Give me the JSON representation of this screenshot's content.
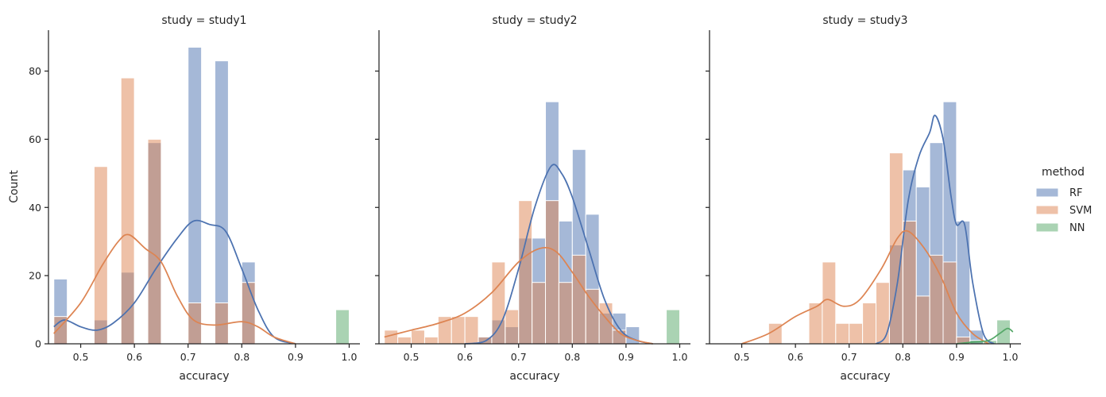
{
  "chart_data": {
    "type": "histogram",
    "ylabel": "Count",
    "xlabel": "accuracy",
    "xlim": [
      0.44,
      1.02
    ],
    "ylim": [
      0,
      92
    ],
    "x_ticks": [
      0.5,
      0.6,
      0.7,
      0.8,
      0.9,
      1.0
    ],
    "x_tick_labels": [
      "0.5",
      "0.6",
      "0.7",
      "0.8",
      "0.9",
      "1.0"
    ],
    "y_ticks": [
      0,
      20,
      40,
      60,
      80
    ],
    "y_tick_labels": [
      "0",
      "20",
      "40",
      "60",
      "80"
    ],
    "grid": false,
    "legend": {
      "title": "method",
      "placement": "right",
      "entries": [
        {
          "label": "RF",
          "color": "#4c72b0"
        },
        {
          "label": "SVM",
          "color": "#dd8452"
        },
        {
          "label": "NN",
          "color": "#55a868"
        }
      ]
    },
    "panels": [
      {
        "title": "study = study1",
        "series": [
          {
            "name": "RF",
            "color": "#4c72b0",
            "bins": [
              {
                "x0": 0.45,
                "x1": 0.475,
                "y": 19
              },
              {
                "x0": 0.525,
                "x1": 0.55,
                "y": 7
              },
              {
                "x0": 0.575,
                "x1": 0.6,
                "y": 21
              },
              {
                "x0": 0.625,
                "x1": 0.65,
                "y": 59
              },
              {
                "x0": 0.7,
                "x1": 0.725,
                "y": 87
              },
              {
                "x0": 0.75,
                "x1": 0.775,
                "y": 83
              },
              {
                "x0": 0.8,
                "x1": 0.825,
                "y": 24
              }
            ],
            "kde": [
              [
                0.45,
                5
              ],
              [
                0.47,
                7
              ],
              [
                0.5,
                5
              ],
              [
                0.53,
                4
              ],
              [
                0.56,
                6
              ],
              [
                0.6,
                12
              ],
              [
                0.64,
                22
              ],
              [
                0.68,
                31
              ],
              [
                0.71,
                36
              ],
              [
                0.74,
                35
              ],
              [
                0.77,
                33
              ],
              [
                0.8,
                22
              ],
              [
                0.83,
                10
              ],
              [
                0.86,
                2
              ],
              [
                0.9,
                0
              ]
            ]
          },
          {
            "name": "SVM",
            "color": "#dd8452",
            "bins": [
              {
                "x0": 0.45,
                "x1": 0.475,
                "y": 8
              },
              {
                "x0": 0.525,
                "x1": 0.55,
                "y": 52
              },
              {
                "x0": 0.575,
                "x1": 0.6,
                "y": 78
              },
              {
                "x0": 0.625,
                "x1": 0.65,
                "y": 60
              },
              {
                "x0": 0.7,
                "x1": 0.725,
                "y": 12
              },
              {
                "x0": 0.75,
                "x1": 0.775,
                "y": 12
              },
              {
                "x0": 0.8,
                "x1": 0.825,
                "y": 18
              }
            ],
            "kde": [
              [
                0.45,
                3
              ],
              [
                0.5,
                12
              ],
              [
                0.54,
                23
              ],
              [
                0.57,
                30
              ],
              [
                0.59,
                32
              ],
              [
                0.62,
                28
              ],
              [
                0.65,
                24
              ],
              [
                0.68,
                14
              ],
              [
                0.71,
                7
              ],
              [
                0.75,
                5.5
              ],
              [
                0.8,
                6.5
              ],
              [
                0.83,
                5
              ],
              [
                0.86,
                2
              ],
              [
                0.9,
                0
              ]
            ]
          },
          {
            "name": "NN",
            "color": "#55a868",
            "bins": [
              {
                "x0": 0.975,
                "x1": 1.0,
                "y": 10
              }
            ],
            "kde": []
          }
        ]
      },
      {
        "title": "study = study2",
        "series": [
          {
            "name": "RF",
            "color": "#4c72b0",
            "bins": [
              {
                "x0": 0.625,
                "x1": 0.65,
                "y": 2
              },
              {
                "x0": 0.65,
                "x1": 0.675,
                "y": 7
              },
              {
                "x0": 0.675,
                "x1": 0.7,
                "y": 5
              },
              {
                "x0": 0.7,
                "x1": 0.725,
                "y": 31
              },
              {
                "x0": 0.725,
                "x1": 0.75,
                "y": 31
              },
              {
                "x0": 0.75,
                "x1": 0.775,
                "y": 71
              },
              {
                "x0": 0.775,
                "x1": 0.8,
                "y": 36
              },
              {
                "x0": 0.8,
                "x1": 0.825,
                "y": 57
              },
              {
                "x0": 0.825,
                "x1": 0.85,
                "y": 38
              },
              {
                "x0": 0.85,
                "x1": 0.875,
                "y": 9
              },
              {
                "x0": 0.875,
                "x1": 0.9,
                "y": 9
              },
              {
                "x0": 0.9,
                "x1": 0.925,
                "y": 5
              }
            ],
            "kde": [
              [
                0.6,
                0
              ],
              [
                0.64,
                1
              ],
              [
                0.67,
                7
              ],
              [
                0.7,
                22
              ],
              [
                0.73,
                40
              ],
              [
                0.76,
                52
              ],
              [
                0.78,
                50
              ],
              [
                0.8,
                43
              ],
              [
                0.83,
                28
              ],
              [
                0.86,
                13
              ],
              [
                0.89,
                4
              ],
              [
                0.92,
                1
              ],
              [
                0.95,
                0
              ]
            ]
          },
          {
            "name": "SVM",
            "color": "#dd8452",
            "bins": [
              {
                "x0": 0.45,
                "x1": 0.475,
                "y": 4
              },
              {
                "x0": 0.475,
                "x1": 0.5,
                "y": 2
              },
              {
                "x0": 0.5,
                "x1": 0.525,
                "y": 4
              },
              {
                "x0": 0.525,
                "x1": 0.55,
                "y": 2
              },
              {
                "x0": 0.55,
                "x1": 0.575,
                "y": 8
              },
              {
                "x0": 0.575,
                "x1": 0.6,
                "y": 8
              },
              {
                "x0": 0.6,
                "x1": 0.625,
                "y": 8
              },
              {
                "x0": 0.625,
                "x1": 0.65,
                "y": 2
              },
              {
                "x0": 0.65,
                "x1": 0.675,
                "y": 24
              },
              {
                "x0": 0.675,
                "x1": 0.7,
                "y": 10
              },
              {
                "x0": 0.7,
                "x1": 0.725,
                "y": 42
              },
              {
                "x0": 0.725,
                "x1": 0.75,
                "y": 18
              },
              {
                "x0": 0.75,
                "x1": 0.775,
                "y": 42
              },
              {
                "x0": 0.775,
                "x1": 0.8,
                "y": 18
              },
              {
                "x0": 0.8,
                "x1": 0.825,
                "y": 26
              },
              {
                "x0": 0.825,
                "x1": 0.85,
                "y": 16
              },
              {
                "x0": 0.85,
                "x1": 0.875,
                "y": 12
              },
              {
                "x0": 0.875,
                "x1": 0.9,
                "y": 4
              }
            ],
            "kde": [
              [
                0.45,
                2
              ],
              [
                0.5,
                4
              ],
              [
                0.55,
                6
              ],
              [
                0.6,
                9
              ],
              [
                0.65,
                15
              ],
              [
                0.7,
                24
              ],
              [
                0.74,
                28
              ],
              [
                0.77,
                27
              ],
              [
                0.8,
                21
              ],
              [
                0.83,
                14
              ],
              [
                0.86,
                8
              ],
              [
                0.89,
                3
              ],
              [
                0.92,
                1
              ],
              [
                0.95,
                0
              ]
            ]
          },
          {
            "name": "NN",
            "color": "#55a868",
            "bins": [
              {
                "x0": 0.975,
                "x1": 1.0,
                "y": 10
              }
            ],
            "kde": []
          }
        ]
      },
      {
        "title": "study = study3",
        "series": [
          {
            "name": "RF",
            "color": "#4c72b0",
            "bins": [
              {
                "x0": 0.775,
                "x1": 0.8,
                "y": 29
              },
              {
                "x0": 0.8,
                "x1": 0.825,
                "y": 51
              },
              {
                "x0": 0.825,
                "x1": 0.85,
                "y": 46
              },
              {
                "x0": 0.85,
                "x1": 0.875,
                "y": 59
              },
              {
                "x0": 0.875,
                "x1": 0.9,
                "y": 71
              },
              {
                "x0": 0.9,
                "x1": 0.925,
                "y": 36
              },
              {
                "x0": 0.925,
                "x1": 0.95,
                "y": 4
              }
            ],
            "kde": [
              [
                0.75,
                0
              ],
              [
                0.77,
                3
              ],
              [
                0.79,
                18
              ],
              [
                0.81,
                42
              ],
              [
                0.83,
                55
              ],
              [
                0.85,
                62
              ],
              [
                0.86,
                67
              ],
              [
                0.875,
                60
              ],
              [
                0.89,
                43
              ],
              [
                0.9,
                35
              ],
              [
                0.915,
                35
              ],
              [
                0.93,
                18
              ],
              [
                0.95,
                3
              ],
              [
                0.97,
                0
              ]
            ]
          },
          {
            "name": "SVM",
            "color": "#dd8452",
            "bins": [
              {
                "x0": 0.55,
                "x1": 0.575,
                "y": 6
              },
              {
                "x0": 0.625,
                "x1": 0.65,
                "y": 12
              },
              {
                "x0": 0.65,
                "x1": 0.675,
                "y": 24
              },
              {
                "x0": 0.675,
                "x1": 0.7,
                "y": 6
              },
              {
                "x0": 0.7,
                "x1": 0.725,
                "y": 6
              },
              {
                "x0": 0.725,
                "x1": 0.75,
                "y": 12
              },
              {
                "x0": 0.75,
                "x1": 0.775,
                "y": 18
              },
              {
                "x0": 0.775,
                "x1": 0.8,
                "y": 56
              },
              {
                "x0": 0.8,
                "x1": 0.825,
                "y": 36
              },
              {
                "x0": 0.825,
                "x1": 0.85,
                "y": 14
              },
              {
                "x0": 0.85,
                "x1": 0.875,
                "y": 26
              },
              {
                "x0": 0.875,
                "x1": 0.9,
                "y": 24
              },
              {
                "x0": 0.9,
                "x1": 0.925,
                "y": 2
              }
            ],
            "kde": [
              [
                0.5,
                0
              ],
              [
                0.55,
                3
              ],
              [
                0.6,
                8
              ],
              [
                0.64,
                11
              ],
              [
                0.66,
                13
              ],
              [
                0.69,
                11
              ],
              [
                0.72,
                13
              ],
              [
                0.76,
                22
              ],
              [
                0.79,
                31
              ],
              [
                0.81,
                33
              ],
              [
                0.84,
                28
              ],
              [
                0.87,
                20
              ],
              [
                0.9,
                9
              ],
              [
                0.93,
                3
              ],
              [
                0.96,
                0
              ]
            ]
          },
          {
            "name": "NN",
            "color": "#55a868",
            "bins": [
              {
                "x0": 0.925,
                "x1": 0.95,
                "y": 1
              },
              {
                "x0": 0.95,
                "x1": 0.975,
                "y": 1
              },
              {
                "x0": 0.975,
                "x1": 1.0,
                "y": 7
              }
            ],
            "kde": [
              [
                0.9,
                0
              ],
              [
                0.93,
                0.5
              ],
              [
                0.96,
                1
              ],
              [
                0.98,
                3
              ],
              [
                0.995,
                4.5
              ],
              [
                1.005,
                3.5
              ]
            ]
          }
        ]
      }
    ]
  }
}
